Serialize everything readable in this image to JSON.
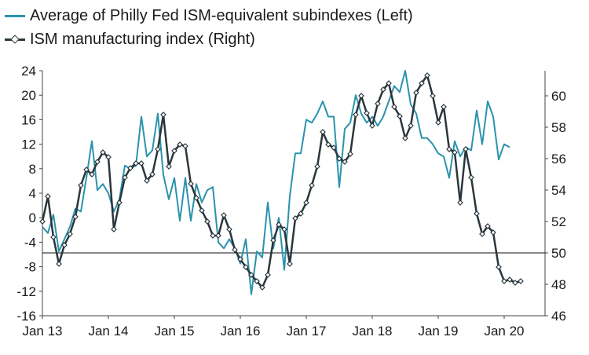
{
  "legend": [
    {
      "label": "Average of Philly Fed ISM-equivalent subindexes (Left)",
      "color": "#2a93ad"
    },
    {
      "label": "ISM manufacturing index (Right)",
      "color": "#2a363c"
    }
  ],
  "chart_data": {
    "type": "line",
    "x_ticks": [
      "Jan 13",
      "Jan 14",
      "Jan 15",
      "Jan 16",
      "Jan 17",
      "Jan 18",
      "Jan 19",
      "Jan 20"
    ],
    "y_left": {
      "ticks": [
        24,
        20,
        16,
        12,
        8,
        4,
        0,
        -4,
        -8,
        -12,
        -16
      ],
      "range": [
        -16,
        24
      ]
    },
    "y_right": {
      "ticks": [
        60,
        58,
        56,
        54,
        52,
        50,
        48,
        46
      ],
      "range": [
        46,
        61.6
      ]
    },
    "reference_line": {
      "axis": "right",
      "value": 50
    },
    "series": [
      {
        "name": "Average of Philly Fed ISM-equivalent subindexes (Left)",
        "axis": "left",
        "color": "#2a93ad",
        "start": "Jan 13",
        "frequency": "monthly",
        "values": [
          -1.5,
          -2.5,
          0.5,
          -5.5,
          -3.5,
          -1.5,
          1.5,
          1.0,
          6.5,
          12.5,
          4.5,
          5.5,
          4.0,
          1.0,
          3.0,
          8.5,
          8.0,
          8.5,
          16.5,
          10.0,
          11.0,
          17.0,
          7.0,
          3.0,
          6.5,
          -0.5,
          6.5,
          -0.5,
          5.5,
          2.5,
          4.5,
          5.0,
          -4.0,
          -5.0,
          -3.5,
          -5.0,
          -7.5,
          -3.5,
          -12.5,
          -5.5,
          -6.5,
          2.5,
          -5.0,
          0.0,
          -8.5,
          3.5,
          10.5,
          10.5,
          16.0,
          15.5,
          17.0,
          19.0,
          16.5,
          16.5,
          5.0,
          14.5,
          15.5,
          20.0,
          17.0,
          15.5,
          16.5,
          15.0,
          16.5,
          19.0,
          21.5,
          20.5,
          24.0,
          18.5,
          17.0,
          13.0,
          13.0,
          12.0,
          10.5,
          10.0,
          6.5,
          12.5,
          10.0,
          11.5,
          11.0,
          17.5,
          12.0,
          19.0,
          16.5,
          9.5,
          12.0,
          11.5
        ]
      },
      {
        "name": "ISM manufacturing index (Right)",
        "axis": "right",
        "color": "#2a363c",
        "start": "Jan 13",
        "frequency": "monthly",
        "values": [
          52.0,
          53.6,
          51.0,
          49.3,
          50.5,
          51.2,
          52.3,
          54.3,
          55.3,
          55.0,
          55.8,
          56.4,
          56.1,
          51.5,
          53.2,
          54.8,
          55.4,
          55.7,
          55.7,
          54.6,
          55.0,
          56.6,
          58.8,
          55.5,
          56.5,
          56.9,
          56.8,
          54.4,
          53.5,
          52.7,
          52.0,
          51.1,
          51.1,
          52.4,
          51.5,
          50.2,
          49.6,
          49.1,
          48.6,
          48.2,
          47.8,
          48.6,
          50.8,
          51.8,
          51.5,
          49.3,
          52.2,
          52.5,
          53.2,
          54.3,
          55.5,
          57.7,
          56.9,
          56.7,
          56.0,
          55.8,
          56.3,
          58.8,
          60.0,
          58.9,
          58.1,
          59.5,
          60.4,
          60.8,
          59.3,
          58.7,
          57.3,
          58.1,
          60.2,
          60.8,
          61.3,
          60.0,
          58.3,
          59.3,
          56.6,
          56.4,
          53.2,
          56.6,
          54.8,
          52.5,
          51.2,
          51.7,
          51.3,
          49.1,
          48.2,
          48.3,
          48.1,
          48.2
        ]
      }
    ]
  }
}
